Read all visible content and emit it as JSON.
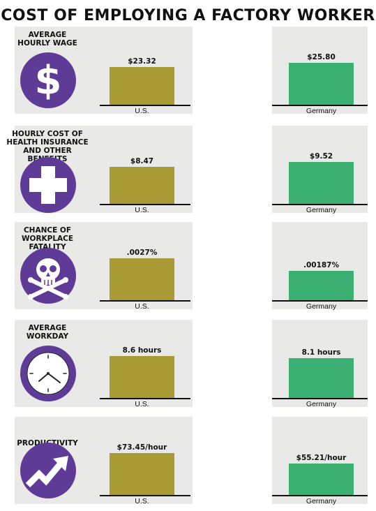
{
  "title": "COST OF EMPLOYING A FACTORY WORKER",
  "colors": {
    "us": "#a89a35",
    "germany": "#3bb072",
    "icon": "#5e3b96",
    "panel": "#e9e9e7"
  },
  "chart_data": [
    {
      "type": "bar",
      "title": "AVERAGE\nHOURLY WAGE",
      "icon": "dollar-icon",
      "categories": [
        "U.S.",
        "Germany"
      ],
      "values": [
        23.32,
        25.8
      ],
      "labels": [
        "$23.32",
        "$25.80"
      ]
    },
    {
      "type": "bar",
      "title": "HOURLY COST OF\nHEALTH INSURANCE\nAND OTHER BENEFITS",
      "icon": "plus-icon",
      "categories": [
        "U.S.",
        "Germany"
      ],
      "values": [
        8.47,
        9.52
      ],
      "labels": [
        "$8.47",
        "$9.52"
      ]
    },
    {
      "type": "bar",
      "title": "CHANCE OF\nWORKPLACE FATALITY",
      "icon": "skull-icon",
      "categories": [
        "U.S.",
        "Germany"
      ],
      "values": [
        0.0027,
        0.00187
      ],
      "labels": [
        ".0027%",
        ".00187%"
      ]
    },
    {
      "type": "bar",
      "title": "AVERAGE\nWORKDAY",
      "icon": "clock-icon",
      "categories": [
        "U.S.",
        "Germany"
      ],
      "values": [
        8.6,
        8.1
      ],
      "labels": [
        "8.6 hours",
        "8.1 hours"
      ]
    },
    {
      "type": "bar",
      "title": "PRODUCTIVITY",
      "icon": "trend-arrow-icon",
      "categories": [
        "U.S.",
        "Germany"
      ],
      "values": [
        73.45,
        55.21
      ],
      "labels": [
        "$73.45/hour",
        "$55.21/hour"
      ]
    }
  ]
}
